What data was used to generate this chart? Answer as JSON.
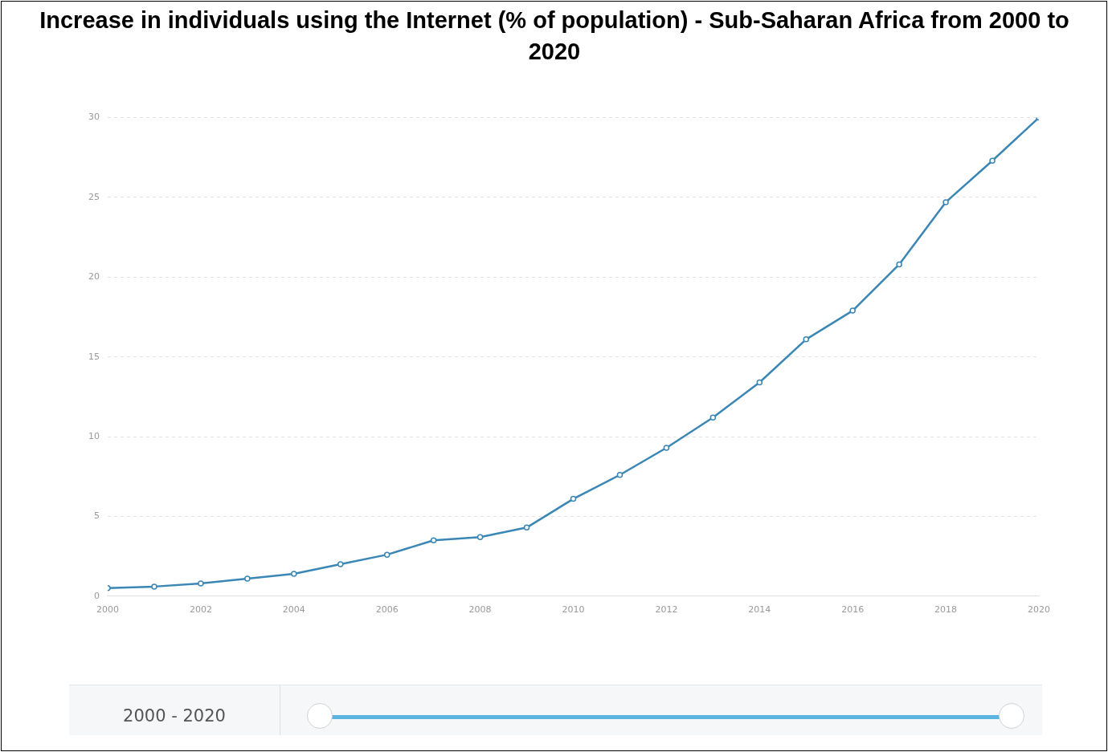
{
  "chart_data": {
    "type": "line",
    "title": "Increase in individuals using the Internet (% of population) - Sub-Saharan Africa from 2000 to 2020",
    "x": [
      2000,
      2001,
      2002,
      2003,
      2004,
      2005,
      2006,
      2007,
      2008,
      2009,
      2010,
      2011,
      2012,
      2013,
      2014,
      2015,
      2016,
      2017,
      2018,
      2019,
      2020
    ],
    "values": [
      0.5,
      0.6,
      0.8,
      1.1,
      1.4,
      2.0,
      2.6,
      3.5,
      3.7,
      4.3,
      6.1,
      7.6,
      9.3,
      11.2,
      13.4,
      16.1,
      17.9,
      20.8,
      24.7,
      27.3,
      30.0
    ],
    "color": "#3a87b5",
    "xlim": [
      2000,
      2020
    ],
    "xticks": [
      2000,
      2002,
      2004,
      2006,
      2008,
      2010,
      2012,
      2014,
      2016,
      2018,
      2020
    ],
    "ylim": [
      0,
      30
    ],
    "yticks": [
      0,
      5,
      10,
      15,
      20,
      25,
      30
    ],
    "grid": "y",
    "marker": "circle",
    "line_style": "solid",
    "annotations": [
      "2000 - 2020"
    ]
  }
}
